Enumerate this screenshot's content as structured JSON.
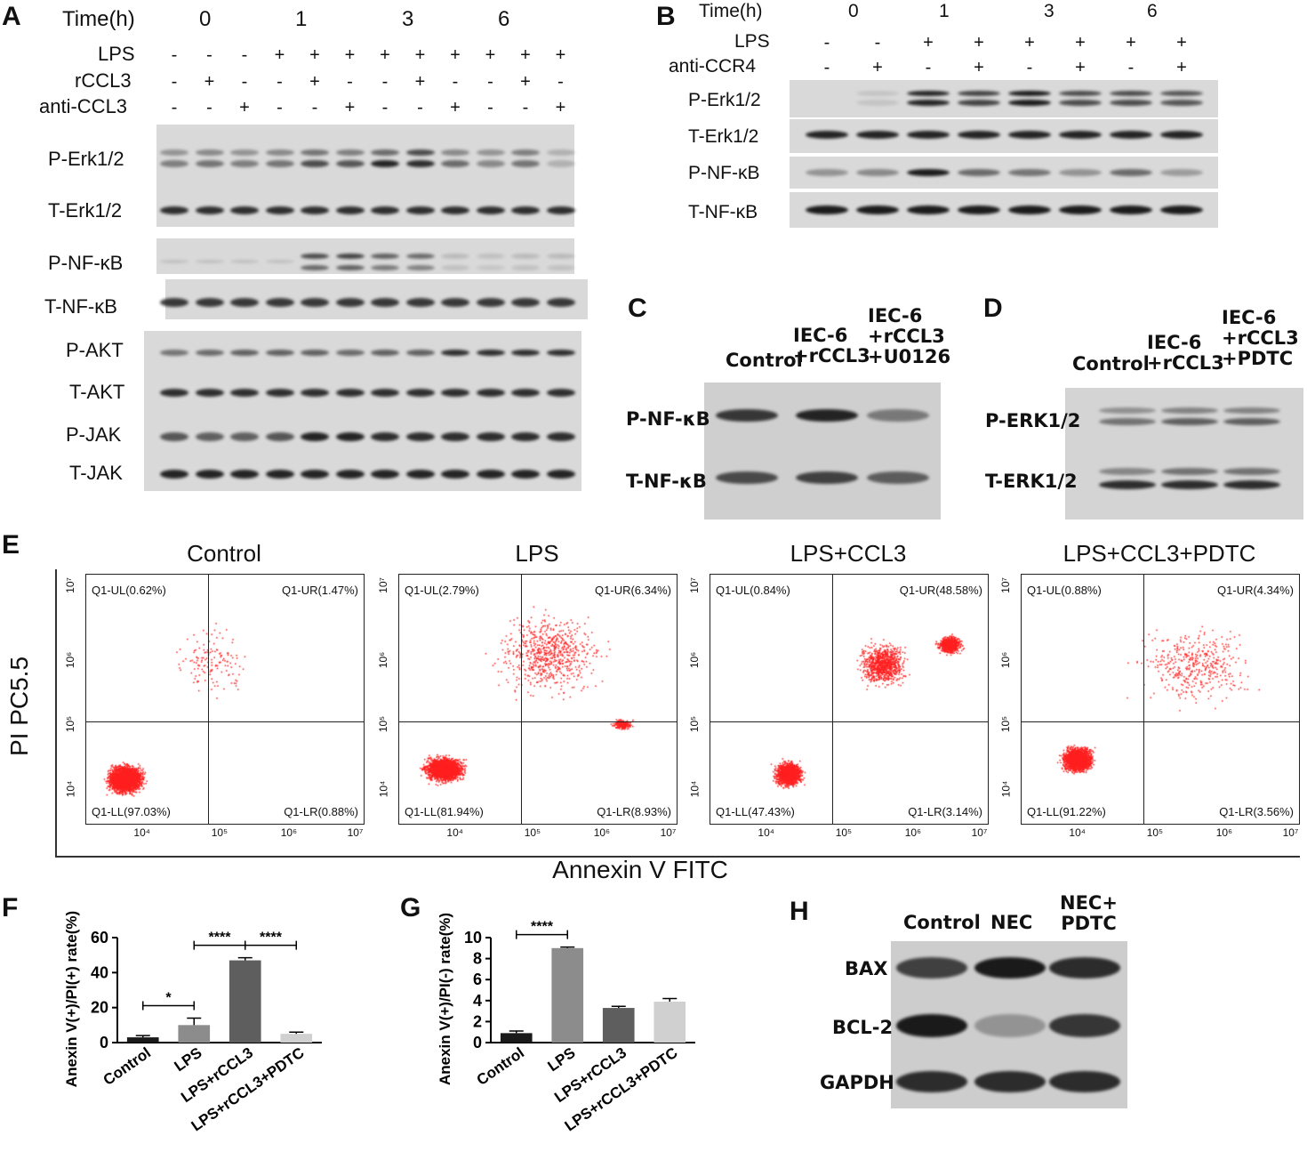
{
  "panels": {
    "A": "A",
    "B": "B",
    "C": "C",
    "D": "D",
    "E": "E",
    "F": "F",
    "G": "G",
    "H": "H"
  },
  "panelA": {
    "time_label": "Time(h)",
    "times": [
      "0",
      "1",
      "3",
      "6"
    ],
    "row_labels": {
      "lps": "LPS",
      "rccl3": "rCCL3",
      "anti": "anti-CCL3"
    },
    "lps": [
      "-",
      "-",
      "-",
      "+",
      "+",
      "+",
      "+",
      "+",
      "+",
      "+",
      "+",
      "+"
    ],
    "rccl3": [
      "-",
      "+",
      "-",
      "-",
      "+",
      "-",
      "-",
      "+",
      "-",
      "-",
      "+",
      "-"
    ],
    "anti": [
      "-",
      "-",
      "+",
      "-",
      "-",
      "+",
      "-",
      "-",
      "+",
      "-",
      "-",
      "+"
    ],
    "blots": [
      "P-Erk1/2",
      "T-Erk1/2",
      "P-NF-κB",
      "T-NF-κB",
      "P-AKT",
      "T-AKT",
      "P-JAK",
      "T-JAK"
    ]
  },
  "panelB": {
    "time_label": "Time(h)",
    "times": [
      "0",
      "1",
      "3",
      "6"
    ],
    "row_labels": {
      "lps": "LPS",
      "anti": "anti-CCR4"
    },
    "lps": [
      "-",
      "-",
      "+",
      "+",
      "+",
      "+",
      "+",
      "+"
    ],
    "anti": [
      "-",
      "+",
      "-",
      "+",
      "-",
      "+",
      "-",
      "+"
    ],
    "blots": [
      "P-Erk1/2",
      "T-Erk1/2",
      "P-NF-κB",
      "T-NF-κB"
    ]
  },
  "panelC": {
    "cols": [
      "Control",
      "IEC-6\n+rCCL3",
      "IEC-6\n+rCCL3\n+U0126"
    ],
    "blots": [
      "P-NF-κB",
      "T-NF-κB"
    ]
  },
  "panelD": {
    "cols": [
      "Control",
      "IEC-6\n+rCCL3",
      "IEC-6\n+rCCL3\n+PDTC"
    ],
    "blots": [
      "P-ERK1/2",
      "T-ERK1/2"
    ]
  },
  "panelE": {
    "ylabel": "PI PC5.5",
    "xlabel": "Annexin V FITC",
    "plots": [
      {
        "title": "Control",
        "ul": "Q1-UL(0.62%)",
        "ur": "Q1-UR(1.47%)",
        "ll": "Q1-LL(97.03%)",
        "lr": "Q1-LR(0.88%)"
      },
      {
        "title": "LPS",
        "ul": "Q1-UL(2.79%)",
        "ur": "Q1-UR(6.34%)",
        "ll": "Q1-LL(81.94%)",
        "lr": "Q1-LR(8.93%)"
      },
      {
        "title": "LPS+CCL3",
        "ul": "Q1-UL(0.84%)",
        "ur": "Q1-UR(48.58%)",
        "ll": "Q1-LL(47.43%)",
        "lr": "Q1-LR(3.14%)"
      },
      {
        "title": "LPS+CCL3+PDTC",
        "ul": "Q1-UL(0.88%)",
        "ur": "Q1-UR(4.34%)",
        "ll": "Q1-LL(91.22%)",
        "lr": "Q1-LR(3.56%)"
      }
    ],
    "xticks": [
      "10⁴",
      "10⁵",
      "10⁶",
      "10⁷"
    ],
    "yticks": [
      "10⁷",
      "10⁶",
      "10⁵",
      "10⁴"
    ],
    "dot_color": "#ff2020"
  },
  "chart_data": [
    {
      "type": "bar",
      "ylabel": "Anexin V(+)/PI(+) rate(%)",
      "categories": [
        "Control",
        "LPS",
        "LPS+rCCL3",
        "LPS+rCCL3+PDTC"
      ],
      "values": [
        3,
        10,
        47,
        5
      ],
      "errors": [
        1,
        4,
        1.5,
        1
      ],
      "ylim": [
        0,
        60
      ],
      "yticks": [
        0,
        20,
        40,
        60
      ],
      "colors": [
        "#1a1a1a",
        "#8c8c8c",
        "#5e5e5e",
        "#d0d0d0"
      ],
      "significance": [
        {
          "from": 0,
          "to": 1,
          "label": "*"
        },
        {
          "from": 1,
          "to": 2,
          "label": "****"
        },
        {
          "from": 2,
          "to": 3,
          "label": "****"
        }
      ]
    },
    {
      "type": "bar",
      "ylabel": "Anexin V(+)/PI(-) rate(%)",
      "categories": [
        "Control",
        "LPS",
        "LPS+rCCL3",
        "LPS+rCCL3+PDTC"
      ],
      "values": [
        0.9,
        9.0,
        3.3,
        3.9
      ],
      "errors": [
        0.2,
        0.1,
        0.15,
        0.3
      ],
      "ylim": [
        0,
        10
      ],
      "yticks": [
        0,
        2,
        4,
        6,
        8,
        10
      ],
      "colors": [
        "#1a1a1a",
        "#8c8c8c",
        "#5e5e5e",
        "#d0d0d0"
      ],
      "significance": [
        {
          "from": 0,
          "to": 1,
          "label": "****"
        }
      ]
    }
  ],
  "panelH": {
    "cols": [
      "Control",
      "NEC",
      "NEC+\nPDTC"
    ],
    "blots": [
      "BAX",
      "BCL-2",
      "GAPDH"
    ]
  }
}
